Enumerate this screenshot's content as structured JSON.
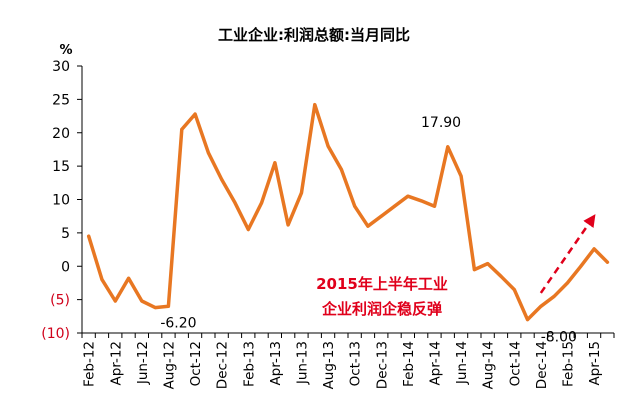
{
  "chart_data": {
    "type": "line",
    "title": "工业企业:利润总额:当月同比",
    "ylabel": "%",
    "ylim": [
      -10,
      30
    ],
    "yticks": [
      {
        "value": 30,
        "label": "30"
      },
      {
        "value": 25,
        "label": "25"
      },
      {
        "value": 20,
        "label": "20"
      },
      {
        "value": 15,
        "label": "15"
      },
      {
        "value": 10,
        "label": "10"
      },
      {
        "value": 5,
        "label": "5"
      },
      {
        "value": 0,
        "label": "0"
      },
      {
        "value": -5,
        "label": "(5)"
      },
      {
        "value": -10,
        "label": "(10)"
      }
    ],
    "xtick_labels": [
      "Feb-12",
      "Apr-12",
      "Jun-12",
      "Aug-12",
      "Oct-12",
      "Dec-12",
      "Feb-13",
      "Apr-13",
      "Jun-13",
      "Aug-13",
      "Oct-13",
      "Dec-13",
      "Feb-14",
      "Apr-14",
      "Jun-14",
      "Aug-14",
      "Oct-14",
      "Dec-14",
      "Feb-15",
      "Apr-15"
    ],
    "grid": false,
    "line_color": "#E87722",
    "negative_tick_color": "#D0021B",
    "series": [
      {
        "x": [
          "Feb-12",
          "Mar-12",
          "Apr-12",
          "May-12",
          "Jun-12",
          "Jul-12",
          "Aug-12",
          "Sep-12",
          "Oct-12",
          "Nov-12",
          "Dec-12",
          "Jan-13",
          "Feb-13",
          "Mar-13",
          "Apr-13",
          "May-13",
          "Jun-13",
          "Jul-13",
          "Aug-13",
          "Sep-13",
          "Oct-13",
          "Nov-13",
          "Dec-13",
          "Jan-14",
          "Feb-14",
          "Mar-14",
          "Apr-14",
          "May-14",
          "Jun-14",
          "Jul-14",
          "Aug-14",
          "Sep-14",
          "Oct-14",
          "Nov-14",
          "Dec-14",
          "Jan-15",
          "Feb-15",
          "Mar-15",
          "Apr-15",
          "May-15"
        ],
        "values": [
          4.5,
          -2.0,
          -5.2,
          -1.8,
          -5.2,
          -6.2,
          -6.0,
          20.5,
          22.8,
          17.0,
          13.0,
          9.5,
          5.5,
          9.5,
          15.5,
          6.2,
          11.0,
          24.2,
          18.0,
          14.5,
          9.0,
          6.0,
          7.5,
          9.0,
          10.5,
          9.8,
          9.0,
          17.9,
          13.5,
          -0.5,
          0.4,
          -1.5,
          -3.5,
          -8.0,
          -6.0,
          -4.5,
          -2.5,
          0.0,
          2.6,
          0.6
        ]
      }
    ],
    "annotations": [
      {
        "text": "-6.20",
        "x": "Aug-12",
        "y": -6.2
      },
      {
        "text": "17.90",
        "x": "Jun-14",
        "y": 17.9
      },
      {
        "text": "-8.00",
        "x": "Dec-14",
        "y": -8.0
      }
    ],
    "callout": {
      "line1": "2015年上半年工业",
      "line2": "企业利润企稳反弹",
      "color": "#E0001B"
    },
    "trend_arrow": {
      "from": {
        "x": "Dec-14",
        "y": -4.0
      },
      "to": {
        "x": "Apr-15",
        "y": 7.5
      },
      "color": "#E0001B",
      "style": "dashed"
    }
  }
}
